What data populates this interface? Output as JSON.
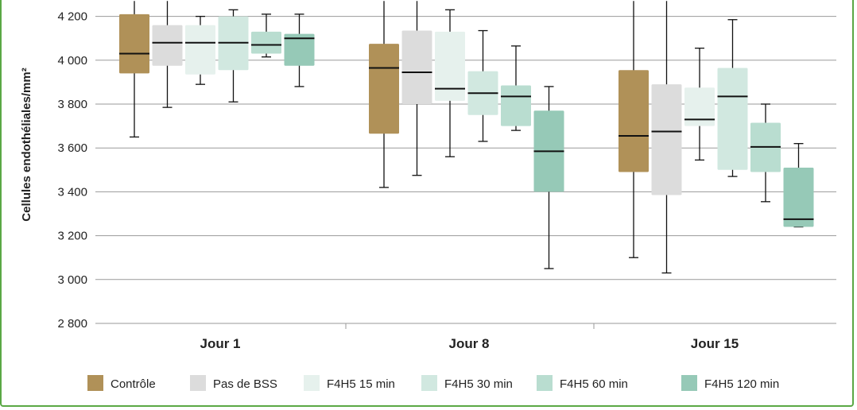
{
  "chart_data": {
    "type": "boxplot",
    "ylabel": "Cellules endothéliales/mm²",
    "ylim": [
      2800,
      4270
    ],
    "yticks": [
      2800,
      3000,
      3200,
      3400,
      3600,
      3800,
      4000,
      4200
    ],
    "ytick_labels": [
      "2 800",
      "3 000",
      "3 200",
      "3 400",
      "3 600",
      "3 800",
      "4 000",
      "4 200"
    ],
    "categories": [
      "Jour 1",
      "Jour 8",
      "Jour 15"
    ],
    "legend_position": "bottom",
    "series": [
      {
        "name": "Contrôle",
        "color": "#b09158",
        "boxes": [
          {
            "min": 3650,
            "q1": 3940,
            "median": 4030,
            "q3": 4210,
            "max": 4270
          },
          {
            "min": 3420,
            "q1": 3665,
            "median": 3965,
            "q3": 4075,
            "max": 4270
          },
          {
            "min": 3100,
            "q1": 3490,
            "median": 3655,
            "q3": 3955,
            "max": 4270
          }
        ]
      },
      {
        "name": "Pas de BSS",
        "color": "#dcdcdc",
        "boxes": [
          {
            "min": 3785,
            "q1": 3975,
            "median": 4080,
            "q3": 4160,
            "max": 4270
          },
          {
            "min": 3475,
            "q1": 3800,
            "median": 3945,
            "q3": 4135,
            "max": 4270
          },
          {
            "min": 3030,
            "q1": 3385,
            "median": 3675,
            "q3": 3890,
            "max": 4270
          }
        ]
      },
      {
        "name": "F4H5 15 min",
        "color": "#e6f1ed",
        "boxes": [
          {
            "min": 3890,
            "q1": 3935,
            "median": 4080,
            "q3": 4160,
            "max": 4200
          },
          {
            "min": 3560,
            "q1": 3815,
            "median": 3870,
            "q3": 4130,
            "max": 4230
          },
          {
            "min": 3545,
            "q1": 3700,
            "median": 3730,
            "q3": 3875,
            "max": 4055
          }
        ]
      },
      {
        "name": "F4H5 30 min",
        "color": "#d1e8e0",
        "boxes": [
          {
            "min": 3810,
            "q1": 3955,
            "median": 4080,
            "q3": 4200,
            "max": 4230
          },
          {
            "min": 3630,
            "q1": 3750,
            "median": 3850,
            "q3": 3950,
            "max": 4135
          },
          {
            "min": 3470,
            "q1": 3500,
            "median": 3835,
            "q3": 3965,
            "max": 4185
          }
        ]
      },
      {
        "name": "F4H5 60 min",
        "color": "#b9ddd0",
        "boxes": [
          {
            "min": 4015,
            "q1": 4030,
            "median": 4070,
            "q3": 4130,
            "max": 4210
          },
          {
            "min": 3680,
            "q1": 3700,
            "median": 3835,
            "q3": 3885,
            "max": 4065
          },
          {
            "min": 3355,
            "q1": 3490,
            "median": 3605,
            "q3": 3715,
            "max": 3800
          }
        ]
      },
      {
        "name": "F4H5 120 min",
        "color": "#96c9b7",
        "boxes": [
          {
            "min": 3880,
            "q1": 3975,
            "median": 4100,
            "q3": 4120,
            "max": 4210
          },
          {
            "min": 3050,
            "q1": 3400,
            "median": 3585,
            "q3": 3770,
            "max": 3880
          },
          {
            "min": 3240,
            "q1": 3240,
            "median": 3275,
            "q3": 3510,
            "max": 3620
          }
        ]
      }
    ]
  }
}
